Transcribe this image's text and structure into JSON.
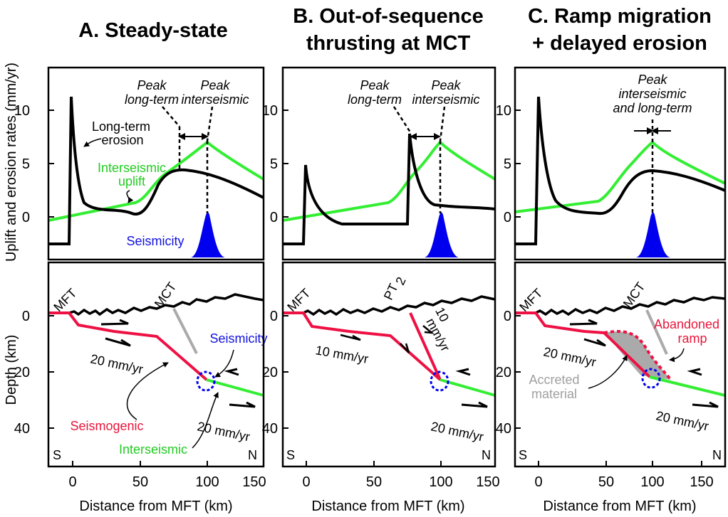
{
  "panels": [
    {
      "title_line1": "A. Steady-state",
      "title_line2": ""
    },
    {
      "title_line1": "B. Out-of-sequence",
      "title_line2": "thrusting at MCT"
    },
    {
      "title_line1": "C. Ramp migration",
      "title_line2": "+ delayed erosion"
    }
  ],
  "axes": {
    "y_top_label": "Uplift and erosion rates (mm/yr)",
    "y_bottom_label": "Depth (km)",
    "x_label": "Distance from MFT (km)",
    "x_ticks": [
      "0",
      "50",
      "100",
      "150"
    ],
    "y_top_ticks": [
      "10",
      "5",
      "0"
    ],
    "y_bottom_ticks": [
      "0",
      "20",
      "40"
    ]
  },
  "labels": {
    "peak_long_term_1": "Peak",
    "peak_long_term_2": "long-term",
    "peak_interseismic_1": "Peak",
    "peak_interseismic_2": "interseismic",
    "long_term_erosion_1": "Long-term",
    "long_term_erosion_2": "erosion",
    "interseismic_uplift_1": "Interseismic",
    "interseismic_uplift_2": "uplift",
    "seismicity": "Seismicity",
    "seismogenic": "Seismogenic",
    "interseismic": "Interseismic",
    "rate_20": "20 mm/yr",
    "rate_10": "10 mm/yr",
    "rate_10_top": "10",
    "rate_mm_yr": "mm/yr",
    "mft": "MFT",
    "mct": "MCT",
    "pt": "PT",
    "pt_sub": "2",
    "south": "S",
    "north": "N",
    "c_peak_1": "Peak",
    "c_peak_2": "interseismic",
    "c_peak_3": "and long-term",
    "abandoned_1": "Abandoned",
    "abandoned_2": "ramp",
    "accreted_1": "Accreted",
    "accreted_2": "material"
  },
  "colors": {
    "erosion": "#000000",
    "uplift": "#33ee33",
    "seismicity": "#0000ee",
    "seismogenic": "#ee1144",
    "accreted": "#a8a8a8"
  }
}
